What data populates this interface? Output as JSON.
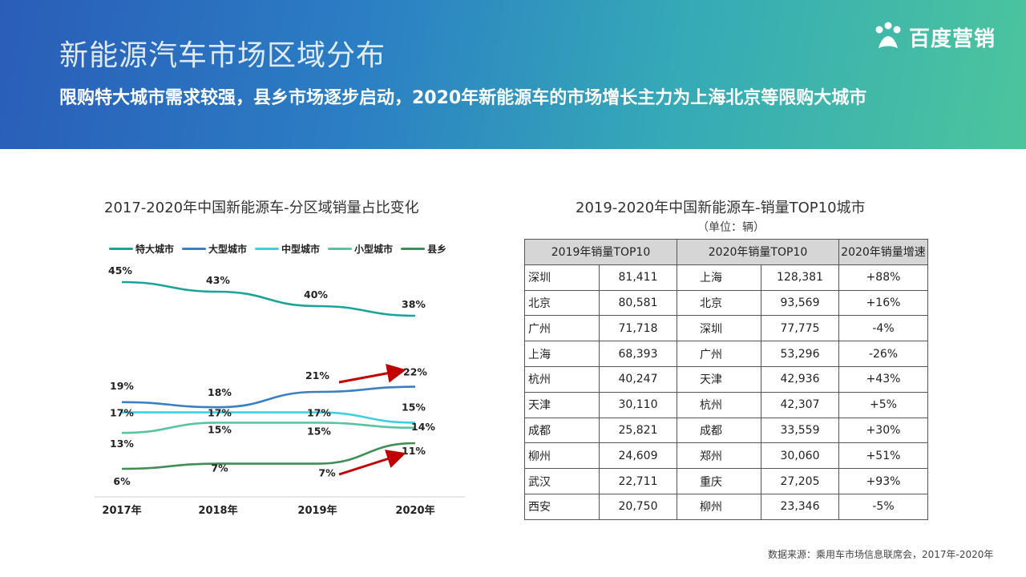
{
  "header": {
    "title": "新能源汽车市场区域分布",
    "subtitle": "限购特大城市需求较强，县乡市场逐步启动，2020年新能源车的市场增长主力为上海北京等限购大城市",
    "logo_text": "百度营销"
  },
  "chart_data": [
    {
      "type": "line",
      "title": "2017-2020年中国新能源车-分区域销量占比变化",
      "categories": [
        "2017年",
        "2018年",
        "2019年",
        "2020年"
      ],
      "series": [
        {
          "name": "特大城市",
          "color": "#1aa39a",
          "values": [
            45,
            43,
            40,
            38
          ]
        },
        {
          "name": "大型城市",
          "color": "#3a7fc2",
          "values": [
            19,
            18,
            21,
            22
          ]
        },
        {
          "name": "中型城市",
          "color": "#3fd0de",
          "values": [
            17,
            17,
            17,
            15
          ]
        },
        {
          "name": "小型城市",
          "color": "#5ac4a2",
          "values": [
            13,
            15,
            15,
            14
          ]
        },
        {
          "name": "县乡",
          "color": "#3f8e55",
          "values": [
            6,
            7,
            7,
            11
          ]
        }
      ],
      "value_suffix": "%",
      "highlight_arrows": [
        "大型城市",
        "县乡"
      ],
      "arrow_color": "#c00000"
    },
    {
      "type": "table",
      "title": "2019-2020年中国新能源车-销量TOP10城市",
      "unit": "（单位：辆）",
      "headers": [
        "2019年销量TOP10",
        "2020年销量TOP10",
        "2020年销量增速"
      ],
      "rows": [
        {
          "city2019": "深圳",
          "sales2019": "81,411",
          "city2020": "上海",
          "sales2020": "128,381",
          "growth": "+88%"
        },
        {
          "city2019": "北京",
          "sales2019": "80,581",
          "city2020": "北京",
          "sales2020": "93,569",
          "growth": "+16%"
        },
        {
          "city2019": "广州",
          "sales2019": "71,718",
          "city2020": "深圳",
          "sales2020": "77,775",
          "growth": "-4%"
        },
        {
          "city2019": "上海",
          "sales2019": "68,393",
          "city2020": "广州",
          "sales2020": "53,296",
          "growth": "-26%"
        },
        {
          "city2019": "杭州",
          "sales2019": "40,247",
          "city2020": "天津",
          "sales2020": "42,936",
          "growth": "+43%"
        },
        {
          "city2019": "天津",
          "sales2019": "30,110",
          "city2020": "杭州",
          "sales2020": "42,307",
          "growth": "+5%"
        },
        {
          "city2019": "成都",
          "sales2019": "25,821",
          "city2020": "成都",
          "sales2020": "33,559",
          "growth": "+30%"
        },
        {
          "city2019": "柳州",
          "sales2019": "24,609",
          "city2020": "郑州",
          "sales2020": "30,060",
          "growth": "+51%"
        },
        {
          "city2019": "武汉",
          "sales2019": "22,711",
          "city2020": "重庆",
          "sales2020": "27,205",
          "growth": "+93%"
        },
        {
          "city2019": "西安",
          "sales2019": "20,750",
          "city2020": "柳州",
          "sales2020": "23,346",
          "growth": "-5%"
        }
      ]
    }
  ],
  "source": "数据来源：乘用车市场信息联席会，2017年-2020年"
}
